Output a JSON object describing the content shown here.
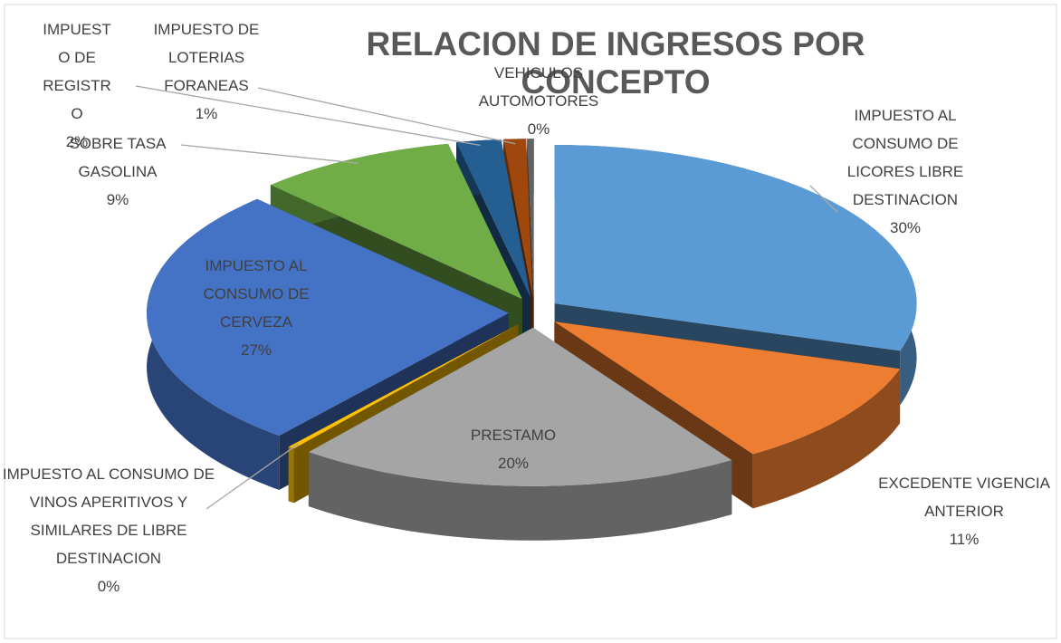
{
  "chart_data": {
    "type": "pie3d",
    "title": "RELACION DE INGRESOS  POR CONCEPTO",
    "categories": [
      "IMPUESTO AL CONSUMO DE LICORES LIBRE DESTINACION",
      "EXCEDENTE VIGENCIA ANTERIOR",
      "PRESTAMO",
      "IMPUESTO AL CONSUMO DE VINOS APERITIVOS Y SIMILARES DE LIBRE DESTINACION",
      "IMPUESTO AL CONSUMO DE CERVEZA",
      "SOBRE TASA GASOLINA",
      "IMPUESTO DE REGISTRO",
      "IMPUESTO DE LOTERIAS FORANEAS",
      "VEHICULOS AUTOMOTORES"
    ],
    "values": [
      30,
      11,
      20,
      0.3,
      27,
      9,
      2,
      1,
      0.3
    ],
    "value_labels": [
      "30%",
      "11%",
      "20%",
      "0%",
      "27%",
      "9%",
      "2%",
      "1%",
      "0%"
    ],
    "colors": [
      "#5b9bd5",
      "#ed7d31",
      "#a5a5a5",
      "#ffc000",
      "#4472c4",
      "#70ad47",
      "#255e91",
      "#9e480e",
      "#636363"
    ]
  }
}
